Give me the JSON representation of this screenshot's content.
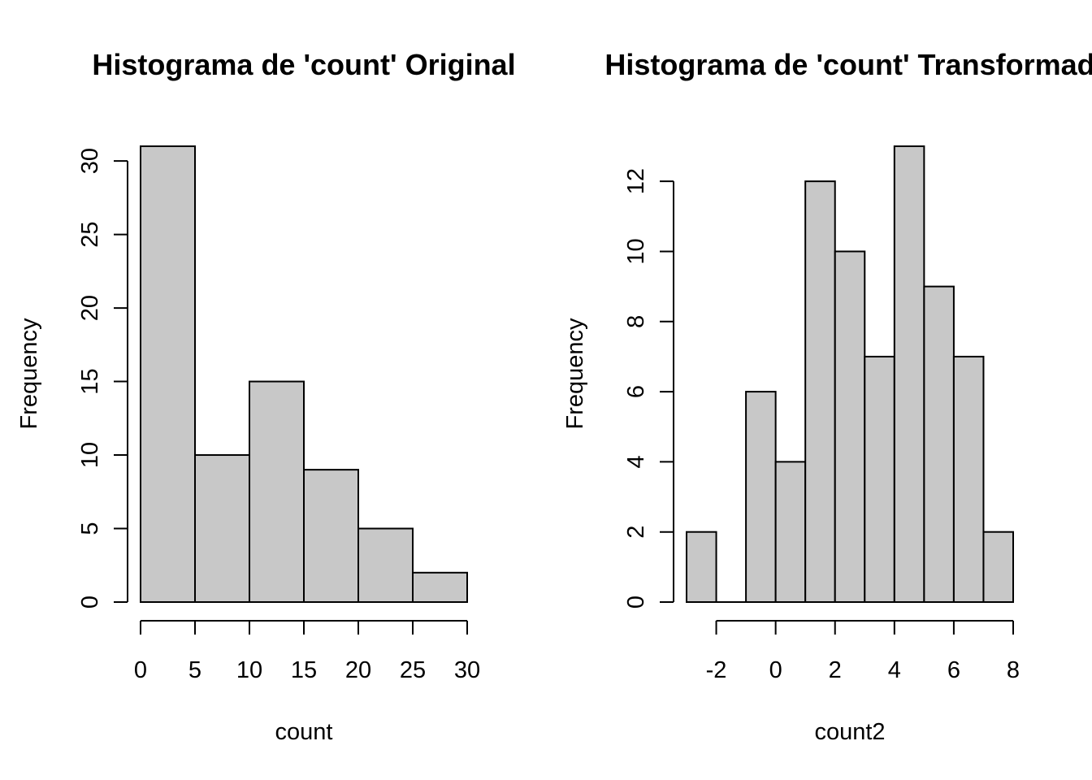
{
  "chart_data": [
    {
      "type": "bar",
      "title": "Histograma de 'count' Original",
      "xlabel": "count",
      "ylabel": "Frequency",
      "bin_edges": [
        0,
        5,
        10,
        15,
        20,
        25,
        30
      ],
      "values": [
        31,
        10,
        15,
        9,
        5,
        2
      ],
      "xticks": [
        0,
        5,
        10,
        15,
        20,
        25,
        30
      ],
      "yticks": [
        0,
        5,
        10,
        15,
        20,
        25,
        30
      ],
      "xlim": [
        0,
        30
      ],
      "ylim": [
        0,
        31
      ],
      "bar_color": "#c8c8c8",
      "grid": false
    },
    {
      "type": "bar",
      "title": "Histograma de 'count' Transformad",
      "xlabel": "count2",
      "ylabel": "Frequency",
      "bin_edges": [
        -3,
        -2,
        -1,
        0,
        1,
        2,
        3,
        4,
        5,
        6,
        7,
        8
      ],
      "values": [
        2,
        0,
        6,
        4,
        12,
        10,
        7,
        13,
        9,
        7,
        2
      ],
      "xticks": [
        -2,
        0,
        2,
        4,
        6,
        8
      ],
      "yticks": [
        0,
        2,
        4,
        6,
        8,
        10,
        12
      ],
      "xlim": [
        -3,
        8
      ],
      "ylim": [
        0,
        13
      ],
      "bar_color": "#c8c8c8",
      "grid": false
    }
  ]
}
